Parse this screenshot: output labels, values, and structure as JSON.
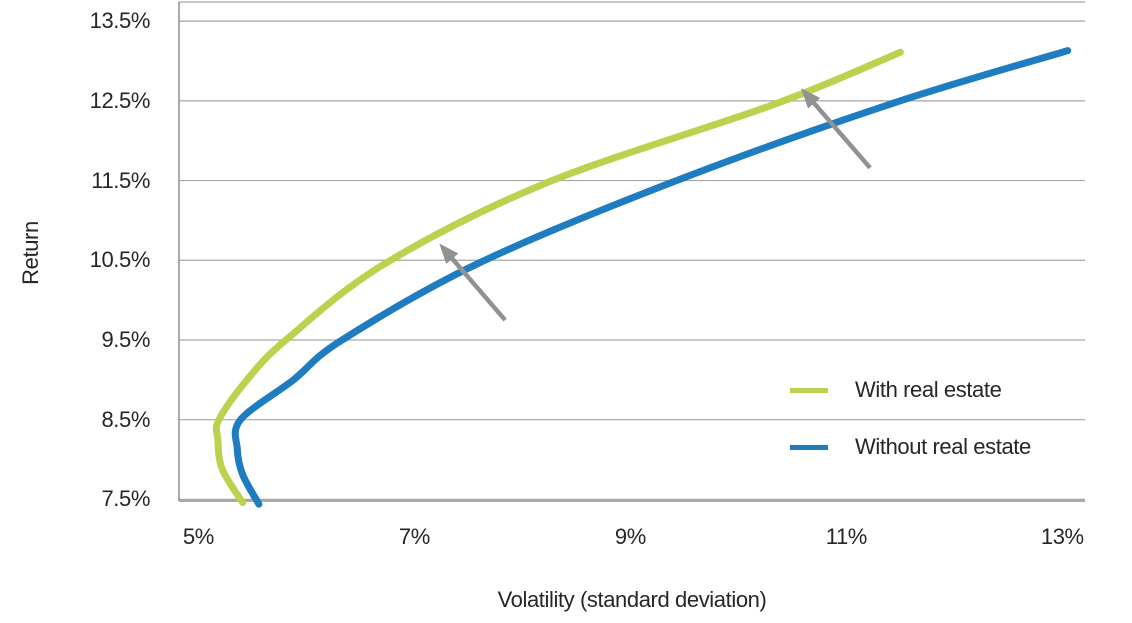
{
  "chart_data": {
    "type": "line",
    "title": "",
    "xlabel": "Volatility (standard deviation)",
    "ylabel": "Return",
    "xlim": [
      4.82,
      13.21
    ],
    "ylim": [
      7.48,
      13.74
    ],
    "grid": "horizontal",
    "legend_position": "inside bottom-right",
    "x_ticks": {
      "values": [
        5,
        7,
        9,
        11,
        13
      ],
      "labels": [
        "5%",
        "7%",
        "9%",
        "11%",
        "13%"
      ]
    },
    "y_ticks": {
      "values": [
        7.5,
        8.5,
        9.5,
        10.5,
        11.5,
        12.5,
        13.5
      ],
      "labels": [
        "7.5%",
        "8.5%",
        "9.5%",
        "10.5%",
        "11.5%",
        "12.5%",
        "13.5%"
      ]
    },
    "series": [
      {
        "name": "With real estate",
        "color": "#bed14f",
        "points": [
          [
            5.41,
            7.46
          ],
          [
            5.22,
            7.88
          ],
          [
            5.18,
            8.25
          ],
          [
            5.19,
            8.5
          ],
          [
            5.45,
            9.0
          ],
          [
            5.81,
            9.5
          ],
          [
            6.73,
            10.46
          ],
          [
            8.24,
            11.48
          ],
          [
            10.34,
            12.46
          ],
          [
            11.5,
            13.11
          ]
        ]
      },
      {
        "name": "Without real estate",
        "color": "#1e7cc0",
        "points": [
          [
            5.56,
            7.44
          ],
          [
            5.41,
            7.81
          ],
          [
            5.36,
            8.13
          ],
          [
            5.39,
            8.5
          ],
          [
            5.88,
            9.0
          ],
          [
            6.33,
            9.5
          ],
          [
            7.59,
            10.46
          ],
          [
            9.39,
            11.48
          ],
          [
            11.41,
            12.46
          ],
          [
            13.05,
            13.13
          ]
        ]
      }
    ],
    "annotations": [
      {
        "type": "arrow",
        "from": [
          7.84,
          9.75
        ],
        "to": [
          7.23,
          10.71
        ]
      },
      {
        "type": "arrow",
        "from": [
          11.22,
          11.66
        ],
        "to": [
          10.58,
          12.66
        ]
      }
    ],
    "annotation_color": "#919191",
    "grid_color": "#a6a6a6",
    "axis_color": "#8f8f8f",
    "text_color": "#262626"
  }
}
